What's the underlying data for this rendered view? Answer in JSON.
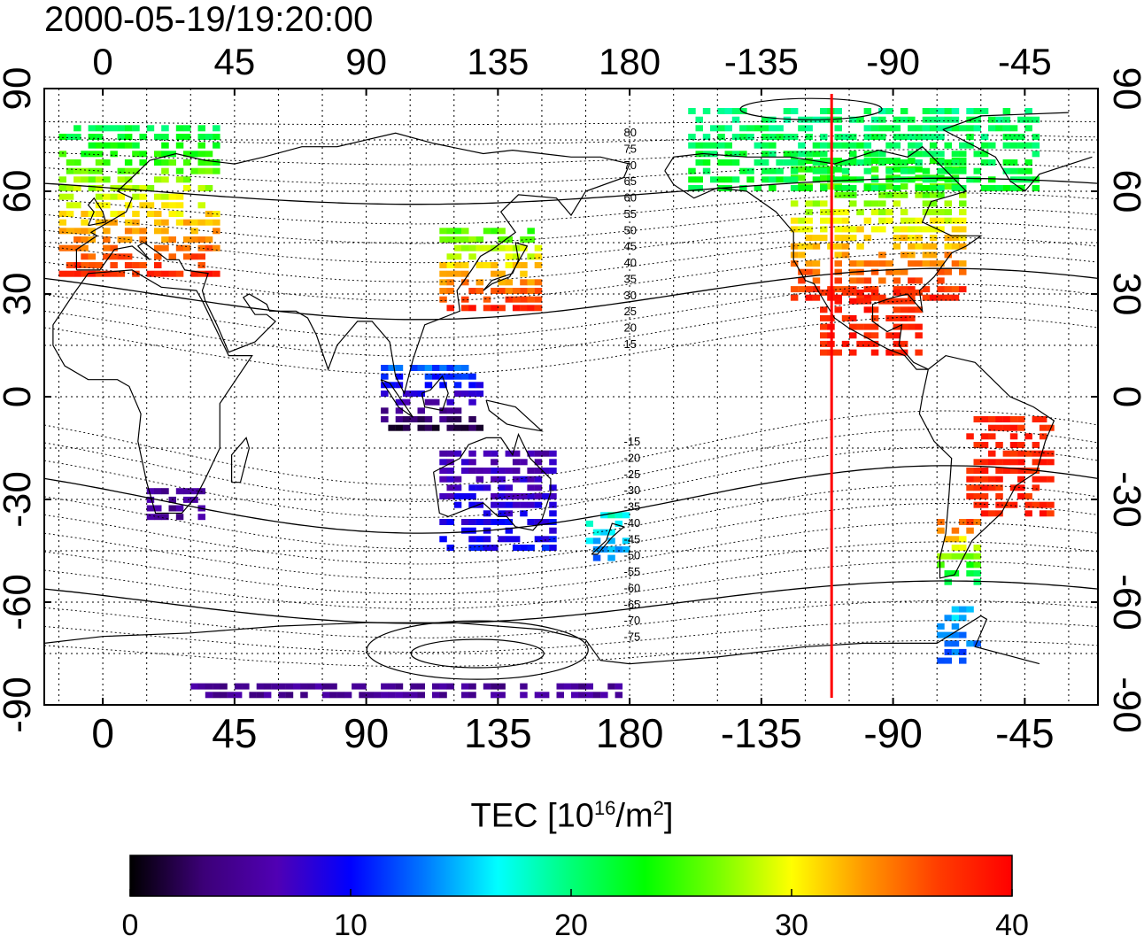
{
  "title": "2000-05-19/19:20:00",
  "map": {
    "projection": "cylindrical",
    "lon_range": [
      -20,
      340
    ],
    "lat_range": [
      -90,
      90
    ],
    "top_lon_ticks": [
      "0",
      "45",
      "90",
      "135",
      "180",
      "-135",
      "-90",
      "-45"
    ],
    "bottom_lon_ticks": [
      "0",
      "45",
      "90",
      "135",
      "180",
      "-135",
      "-90",
      "-45"
    ],
    "left_lat_ticks": [
      "90",
      "60",
      "30",
      "0",
      "-30",
      "-60",
      "-90"
    ],
    "right_lat_ticks": [
      "90",
      "60",
      "30",
      "0",
      "-30",
      "-60",
      "-90"
    ],
    "contour_labels": [
      "80",
      "75",
      "70",
      "65",
      "60",
      "55",
      "50",
      "45",
      "40",
      "35",
      "30",
      "25",
      "20",
      "15",
      "-15",
      "-20",
      "-25",
      "-30",
      "-35",
      "-40",
      "-45",
      "-50",
      "-55",
      "-60",
      "-65",
      "-70",
      "-75"
    ],
    "marker_line_lon": -111,
    "marker_line_color": "#ff0000"
  },
  "colorbar": {
    "title_main": "TEC  [10",
    "title_sup1": "16",
    "title_mid": "/m",
    "title_sup2": "2",
    "title_end": "]",
    "min": 0,
    "max": 40,
    "tick_labels": [
      "0",
      "10",
      "20",
      "30",
      "40"
    ],
    "colors": [
      "#000000",
      "#3c0078",
      "#5000b4",
      "#0000ff",
      "#0078ff",
      "#00ffff",
      "#00ff78",
      "#00ff00",
      "#78ff00",
      "#ffff00",
      "#ff9600",
      "#ff3c00",
      "#ff0000"
    ]
  },
  "tec_regions": [
    {
      "name": "europe",
      "lon": [
        -15,
        40
      ],
      "lat": [
        35,
        80
      ],
      "tec_south": 38,
      "tec_north": 20
    },
    {
      "name": "east-asia",
      "lon": [
        115,
        150
      ],
      "lat": [
        25,
        50
      ],
      "tec_south": 38,
      "tec_north": 24
    },
    {
      "name": "north-america",
      "lon": [
        -125,
        -65
      ],
      "lat": [
        28,
        70
      ],
      "tec_south": 38,
      "tec_north": 22
    },
    {
      "name": "alaska-canada-north",
      "lon": [
        -160,
        -40
      ],
      "lat": [
        60,
        85
      ],
      "tec_south": 22,
      "tec_north": 20
    },
    {
      "name": "central-america",
      "lon": [
        -115,
        -80
      ],
      "lat": [
        12,
        30
      ],
      "tec_south": 38,
      "tec_north": 38
    },
    {
      "name": "south-america",
      "lon": [
        -65,
        -35
      ],
      "lat": [
        -35,
        -5
      ],
      "tec_south": 38,
      "tec_north": 38
    },
    {
      "name": "patagonia",
      "lon": [
        -75,
        -60
      ],
      "lat": [
        -55,
        -35
      ],
      "tec_south": 20,
      "tec_north": 38
    },
    {
      "name": "australia",
      "lon": [
        115,
        155
      ],
      "lat": [
        -45,
        -15
      ],
      "tec_south": 10,
      "tec_north": 6
    },
    {
      "name": "new-zealand",
      "lon": [
        165,
        178
      ],
      "lat": [
        -48,
        -35
      ],
      "tec_south": 13,
      "tec_north": 18
    },
    {
      "name": "south-africa",
      "lon": [
        15,
        35
      ],
      "lat": [
        -36,
        -28
      ],
      "tec_south": 5,
      "tec_north": 5
    },
    {
      "name": "indonesia",
      "lon": [
        95,
        130
      ],
      "lat": [
        -10,
        10
      ],
      "tec_south": 2,
      "tec_north": 14
    },
    {
      "name": "antarctica-strip",
      "lon": [
        30,
        180
      ],
      "lat": [
        -88,
        -85
      ],
      "tec_south": 5,
      "tec_north": 5
    },
    {
      "name": "antarctic-peninsula",
      "lon": [
        -75,
        -60
      ],
      "lat": [
        -78,
        -62
      ],
      "tec_south": 12,
      "tec_north": 16
    }
  ]
}
